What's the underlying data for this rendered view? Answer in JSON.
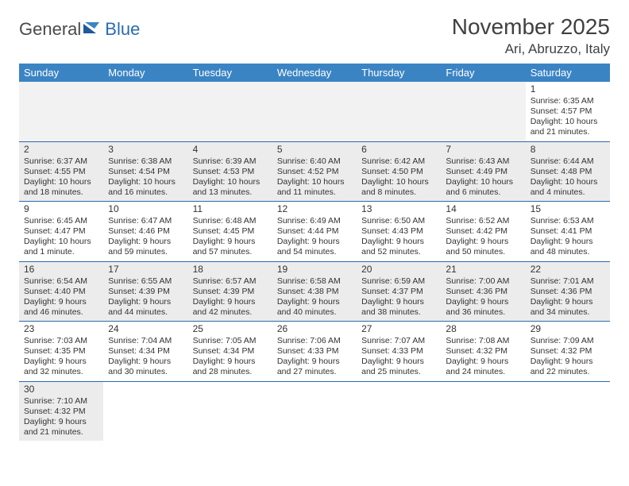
{
  "logo": {
    "part1": "General",
    "part2": "Blue"
  },
  "title": "November 2025",
  "location": "Ari, Abruzzo, Italy",
  "colors": {
    "header_bg": "#3b84c4",
    "header_text": "#ffffff",
    "border": "#2a6cb0",
    "stripe": "#ececec",
    "blank": "#f2f2f2"
  },
  "day_names": [
    "Sunday",
    "Monday",
    "Tuesday",
    "Wednesday",
    "Thursday",
    "Friday",
    "Saturday"
  ],
  "weeks": [
    [
      null,
      null,
      null,
      null,
      null,
      null,
      {
        "d": "1",
        "sr": "Sunrise: 6:35 AM",
        "ss": "Sunset: 4:57 PM",
        "dl": "Daylight: 10 hours and 21 minutes."
      }
    ],
    [
      {
        "d": "2",
        "sr": "Sunrise: 6:37 AM",
        "ss": "Sunset: 4:55 PM",
        "dl": "Daylight: 10 hours and 18 minutes."
      },
      {
        "d": "3",
        "sr": "Sunrise: 6:38 AM",
        "ss": "Sunset: 4:54 PM",
        "dl": "Daylight: 10 hours and 16 minutes."
      },
      {
        "d": "4",
        "sr": "Sunrise: 6:39 AM",
        "ss": "Sunset: 4:53 PM",
        "dl": "Daylight: 10 hours and 13 minutes."
      },
      {
        "d": "5",
        "sr": "Sunrise: 6:40 AM",
        "ss": "Sunset: 4:52 PM",
        "dl": "Daylight: 10 hours and 11 minutes."
      },
      {
        "d": "6",
        "sr": "Sunrise: 6:42 AM",
        "ss": "Sunset: 4:50 PM",
        "dl": "Daylight: 10 hours and 8 minutes."
      },
      {
        "d": "7",
        "sr": "Sunrise: 6:43 AM",
        "ss": "Sunset: 4:49 PM",
        "dl": "Daylight: 10 hours and 6 minutes."
      },
      {
        "d": "8",
        "sr": "Sunrise: 6:44 AM",
        "ss": "Sunset: 4:48 PM",
        "dl": "Daylight: 10 hours and 4 minutes."
      }
    ],
    [
      {
        "d": "9",
        "sr": "Sunrise: 6:45 AM",
        "ss": "Sunset: 4:47 PM",
        "dl": "Daylight: 10 hours and 1 minute."
      },
      {
        "d": "10",
        "sr": "Sunrise: 6:47 AM",
        "ss": "Sunset: 4:46 PM",
        "dl": "Daylight: 9 hours and 59 minutes."
      },
      {
        "d": "11",
        "sr": "Sunrise: 6:48 AM",
        "ss": "Sunset: 4:45 PM",
        "dl": "Daylight: 9 hours and 57 minutes."
      },
      {
        "d": "12",
        "sr": "Sunrise: 6:49 AM",
        "ss": "Sunset: 4:44 PM",
        "dl": "Daylight: 9 hours and 54 minutes."
      },
      {
        "d": "13",
        "sr": "Sunrise: 6:50 AM",
        "ss": "Sunset: 4:43 PM",
        "dl": "Daylight: 9 hours and 52 minutes."
      },
      {
        "d": "14",
        "sr": "Sunrise: 6:52 AM",
        "ss": "Sunset: 4:42 PM",
        "dl": "Daylight: 9 hours and 50 minutes."
      },
      {
        "d": "15",
        "sr": "Sunrise: 6:53 AM",
        "ss": "Sunset: 4:41 PM",
        "dl": "Daylight: 9 hours and 48 minutes."
      }
    ],
    [
      {
        "d": "16",
        "sr": "Sunrise: 6:54 AM",
        "ss": "Sunset: 4:40 PM",
        "dl": "Daylight: 9 hours and 46 minutes."
      },
      {
        "d": "17",
        "sr": "Sunrise: 6:55 AM",
        "ss": "Sunset: 4:39 PM",
        "dl": "Daylight: 9 hours and 44 minutes."
      },
      {
        "d": "18",
        "sr": "Sunrise: 6:57 AM",
        "ss": "Sunset: 4:39 PM",
        "dl": "Daylight: 9 hours and 42 minutes."
      },
      {
        "d": "19",
        "sr": "Sunrise: 6:58 AM",
        "ss": "Sunset: 4:38 PM",
        "dl": "Daylight: 9 hours and 40 minutes."
      },
      {
        "d": "20",
        "sr": "Sunrise: 6:59 AM",
        "ss": "Sunset: 4:37 PM",
        "dl": "Daylight: 9 hours and 38 minutes."
      },
      {
        "d": "21",
        "sr": "Sunrise: 7:00 AM",
        "ss": "Sunset: 4:36 PM",
        "dl": "Daylight: 9 hours and 36 minutes."
      },
      {
        "d": "22",
        "sr": "Sunrise: 7:01 AM",
        "ss": "Sunset: 4:36 PM",
        "dl": "Daylight: 9 hours and 34 minutes."
      }
    ],
    [
      {
        "d": "23",
        "sr": "Sunrise: 7:03 AM",
        "ss": "Sunset: 4:35 PM",
        "dl": "Daylight: 9 hours and 32 minutes."
      },
      {
        "d": "24",
        "sr": "Sunrise: 7:04 AM",
        "ss": "Sunset: 4:34 PM",
        "dl": "Daylight: 9 hours and 30 minutes."
      },
      {
        "d": "25",
        "sr": "Sunrise: 7:05 AM",
        "ss": "Sunset: 4:34 PM",
        "dl": "Daylight: 9 hours and 28 minutes."
      },
      {
        "d": "26",
        "sr": "Sunrise: 7:06 AM",
        "ss": "Sunset: 4:33 PM",
        "dl": "Daylight: 9 hours and 27 minutes."
      },
      {
        "d": "27",
        "sr": "Sunrise: 7:07 AM",
        "ss": "Sunset: 4:33 PM",
        "dl": "Daylight: 9 hours and 25 minutes."
      },
      {
        "d": "28",
        "sr": "Sunrise: 7:08 AM",
        "ss": "Sunset: 4:32 PM",
        "dl": "Daylight: 9 hours and 24 minutes."
      },
      {
        "d": "29",
        "sr": "Sunrise: 7:09 AM",
        "ss": "Sunset: 4:32 PM",
        "dl": "Daylight: 9 hours and 22 minutes."
      }
    ],
    [
      {
        "d": "30",
        "sr": "Sunrise: 7:10 AM",
        "ss": "Sunset: 4:32 PM",
        "dl": "Daylight: 9 hours and 21 minutes."
      },
      null,
      null,
      null,
      null,
      null,
      null
    ]
  ]
}
